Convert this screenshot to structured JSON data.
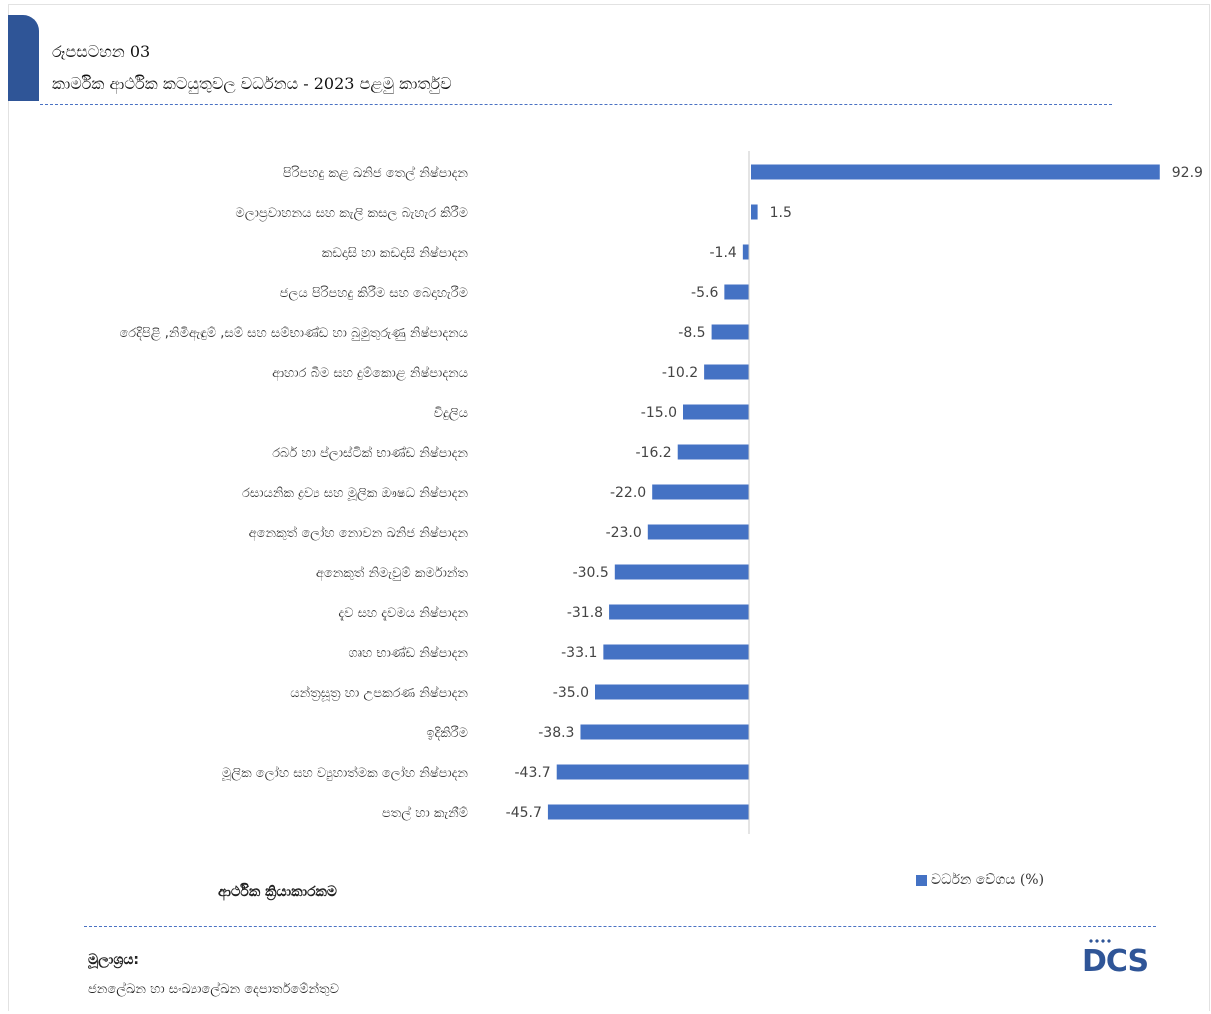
{
  "header": {
    "figure_label": "රූපසටහන 03",
    "title": "කාර්මික ආර්ථික කටයුතුවල වර්ධනය -  2023 පළමු කාර්තුව"
  },
  "chart_data": {
    "type": "bar",
    "orientation": "horizontal",
    "categories": [
      "පිරිපහදු කළ ඛනිජ තෙල් නිෂ්පාදන",
      "මලාප්‍රවාහනය සහ කැලි කසල බැහැර කිරීම",
      "කඩදාසි හා කඩදාසි නිෂ්පාදන",
      "ජලය පිරිපහදු කිරීම සහ බෙදාහැරීම",
      "රෙදිපිළි ,නිමිඇඳුම් ,සම් සහ සම්භාණ්ඩ හා බුමුතුරුණු නිෂ්පාදනය",
      "ආහාර බීම සහ දුම්කොළ නිෂ්පාදනය",
      "විදුලිය",
      "රබර් හා ප්ලාස්ටික් භාණ්ඩ නිෂ්පාදන",
      "රසායනික ද්‍රව්‍ය සහ මූලික ඖෂධ නිෂ්පාදන",
      "අනෙකුත් ලෝහ නොවන ඛනිජ නිෂ්පාදන",
      "අනෙකුත් නිමැවුම් කර්මාන්ත",
      "දැව සහ දැවමය නිෂ්පාදන",
      "ගෘහ භාණ්ඩ නිෂ්පාදන",
      "යන්ත්‍රසූත්‍ර හා උපකරණ නිෂ්පාදන",
      "ඉදිකිරීම",
      "මූලික ලෝහ සහ ව්‍යුහාත්මක ලෝහ නිෂ්පාදන",
      "පතල් හා කැනීම්"
    ],
    "values": [
      92.9,
      1.5,
      -1.4,
      -5.6,
      -8.5,
      -10.2,
      -15.0,
      -16.2,
      -22.0,
      -23.0,
      -30.5,
      -31.8,
      -33.1,
      -35.0,
      -38.3,
      -43.7,
      -45.7
    ],
    "value_labels": [
      "92.9",
      "1.5",
      "-1.4",
      "-5.6",
      "-8.5",
      "-10.2",
      "-15.0",
      "-16.2",
      "-22.0",
      "-23.0",
      "-30.5",
      "-31.8",
      "-33.1",
      "-35.0",
      "-38.3",
      "-43.7",
      "-45.7"
    ],
    "xlim": [
      -47,
      95
    ],
    "legend_position": "bottom-right",
    "grid": false
  },
  "legend": {
    "series_name": "වර්ධන වේගය (%)",
    "color": "#4472c4"
  },
  "axis": {
    "category_title": "ආර්ථික ක්‍රියාකාරකම"
  },
  "source": {
    "label": "මූලාශ්‍රය:",
    "text": "ජනලේඛන හා සංඛ්‍යාලේඛන දෙපාර්තමේන්තුව"
  },
  "logo": {
    "text": "DCS"
  },
  "colors": {
    "bar": "#4472c4",
    "accent": "#2f5597",
    "dash": "#4a72c4"
  }
}
